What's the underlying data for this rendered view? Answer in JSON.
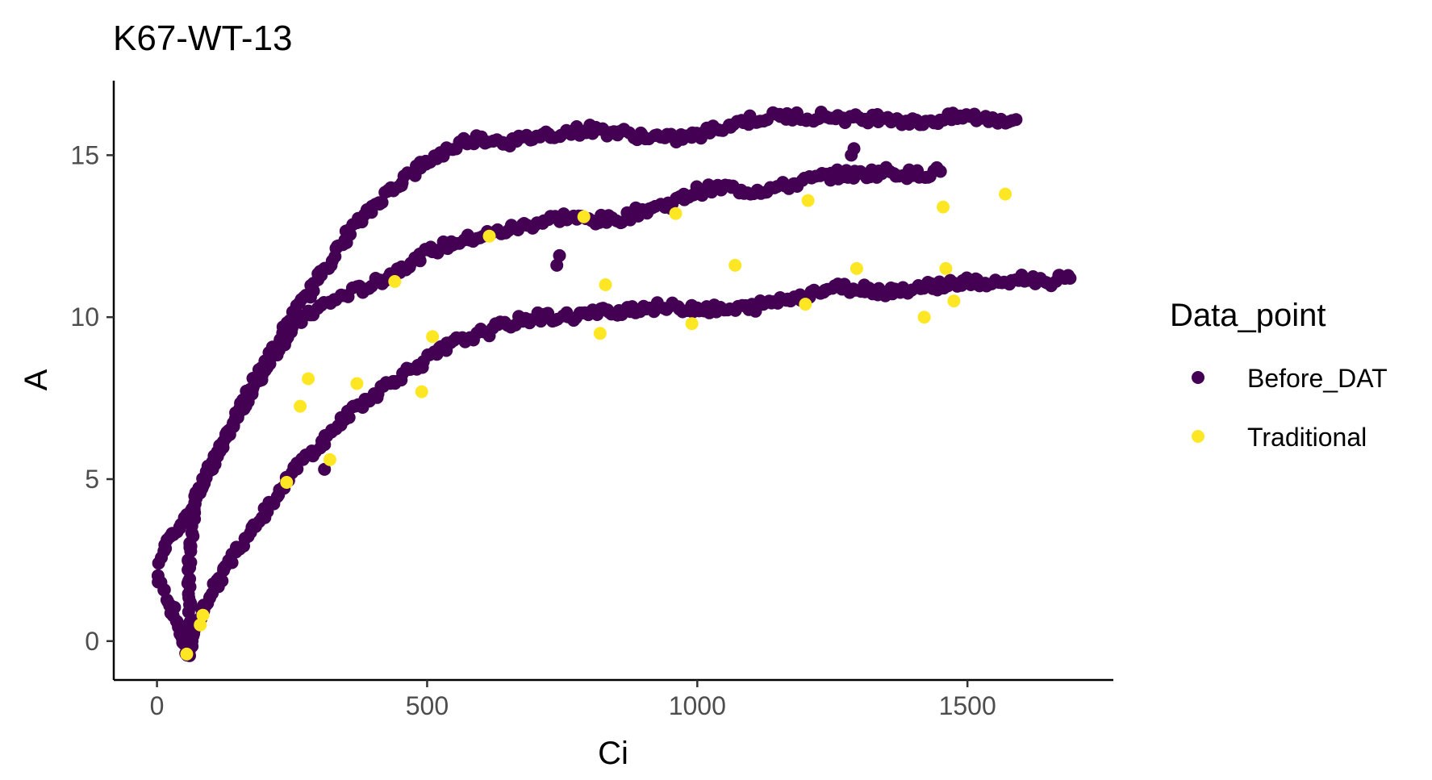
{
  "chart_data": {
    "type": "scatter",
    "title": "K67-WT-13",
    "xlabel": "Ci",
    "ylabel": "A",
    "xlim": [
      -80,
      1770
    ],
    "ylim": [
      -1.2,
      17.3
    ],
    "x_ticks": [
      0,
      500,
      1000,
      1500
    ],
    "y_ticks": [
      0,
      5,
      10,
      15
    ],
    "x_tick_labels": [
      "0",
      "500",
      "1000",
      "1500"
    ],
    "y_tick_labels": [
      "0",
      "5",
      "10",
      "15"
    ],
    "grid": false,
    "legend": {
      "title": "Data_point",
      "position": "right"
    },
    "series": [
      {
        "name": "Before_DAT",
        "color": "#440154",
        "curves": [
          {
            "points": [
              [
                2,
                2.0
              ],
              [
                15,
                1.5
              ],
              [
                30,
                0.9
              ],
              [
                45,
                0.2
              ],
              [
                55,
                -0.4
              ],
              [
                60,
                -0.3
              ],
              [
                60,
                2.5
              ],
              [
                70,
                4.3
              ],
              [
                90,
                5.0
              ],
              [
                120,
                6.0
              ],
              [
                150,
                7.0
              ],
              [
                180,
                7.8
              ],
              [
                210,
                8.7
              ],
              [
                230,
                9.2
              ],
              [
                260,
                9.8
              ],
              [
                300,
                10.3
              ],
              [
                350,
                10.7
              ],
              [
                400,
                11.0
              ],
              [
                450,
                11.5
              ],
              [
                500,
                12.0
              ],
              [
                550,
                12.3
              ],
              [
                600,
                12.5
              ],
              [
                650,
                12.7
              ],
              [
                700,
                12.9
              ],
              [
                750,
                13.1
              ],
              [
                800,
                13.0
              ],
              [
                850,
                13.0
              ],
              [
                900,
                13.3
              ],
              [
                950,
                13.5
              ],
              [
                1000,
                13.9
              ],
              [
                1050,
                14.0
              ],
              [
                1100,
                13.9
              ],
              [
                1150,
                14.0
              ],
              [
                1200,
                14.2
              ],
              [
                1250,
                14.4
              ],
              [
                1300,
                14.4
              ],
              [
                1350,
                14.5
              ],
              [
                1400,
                14.4
              ],
              [
                1450,
                14.5
              ]
            ]
          },
          {
            "points": [
              [
                5,
                2.5
              ],
              [
                20,
                3.0
              ],
              [
                40,
                3.5
              ],
              [
                60,
                4.0
              ],
              [
                80,
                4.7
              ],
              [
                100,
                5.4
              ],
              [
                120,
                6.1
              ],
              [
                150,
                7.0
              ],
              [
                180,
                8.0
              ],
              [
                200,
                8.6
              ],
              [
                230,
                9.4
              ],
              [
                250,
                10.0
              ],
              [
                270,
                10.5
              ],
              [
                300,
                11.2
              ],
              [
                330,
                12.0
              ],
              [
                360,
                12.7
              ],
              [
                400,
                13.4
              ],
              [
                430,
                13.9
              ],
              [
                460,
                14.3
              ],
              [
                500,
                14.8
              ],
              [
                540,
                15.2
              ],
              [
                580,
                15.5
              ],
              [
                620,
                15.5
              ],
              [
                660,
                15.4
              ],
              [
                700,
                15.6
              ],
              [
                750,
                15.7
              ],
              [
                800,
                15.8
              ],
              [
                850,
                15.7
              ],
              [
                900,
                15.6
              ],
              [
                950,
                15.5
              ],
              [
                1000,
                15.6
              ],
              [
                1050,
                15.9
              ],
              [
                1100,
                16.1
              ],
              [
                1150,
                16.2
              ],
              [
                1200,
                16.2
              ],
              [
                1250,
                16.2
              ],
              [
                1300,
                16.1
              ],
              [
                1350,
                16.2
              ],
              [
                1400,
                16.0
              ],
              [
                1450,
                16.1
              ],
              [
                1500,
                16.2
              ],
              [
                1550,
                16.1
              ],
              [
                1590,
                16.1
              ]
            ]
          },
          {
            "points": [
              [
                60,
                -0.4
              ],
              [
                70,
                0.5
              ],
              [
                90,
                1.2
              ],
              [
                120,
                2.0
              ],
              [
                150,
                2.9
              ],
              [
                180,
                3.6
              ],
              [
                210,
                4.2
              ],
              [
                240,
                5.0
              ],
              [
                270,
                5.6
              ],
              [
                300,
                6.0
              ],
              [
                330,
                6.6
              ],
              [
                360,
                7.1
              ],
              [
                400,
                7.6
              ],
              [
                450,
                8.2
              ],
              [
                500,
                8.7
              ],
              [
                550,
                9.2
              ],
              [
                600,
                9.5
              ],
              [
                650,
                9.8
              ],
              [
                700,
                10.0
              ],
              [
                750,
                10.0
              ],
              [
                800,
                10.1
              ],
              [
                850,
                10.2
              ],
              [
                900,
                10.3
              ],
              [
                950,
                10.3
              ],
              [
                1000,
                10.3
              ],
              [
                1050,
                10.2
              ],
              [
                1100,
                10.3
              ],
              [
                1150,
                10.5
              ],
              [
                1200,
                10.7
              ],
              [
                1250,
                10.9
              ],
              [
                1300,
                10.9
              ],
              [
                1350,
                10.8
              ],
              [
                1400,
                10.9
              ],
              [
                1450,
                11.0
              ],
              [
                1500,
                11.1
              ],
              [
                1550,
                11.0
              ],
              [
                1600,
                11.2
              ],
              [
                1650,
                11.1
              ],
              [
                1690,
                11.2
              ]
            ]
          },
          {
            "points": [
              [
                310,
                5.3
              ],
              [
                740,
                11.6
              ],
              [
                745,
                11.9
              ],
              [
                1285,
                15.0
              ],
              [
                1290,
                15.2
              ]
            ]
          }
        ]
      },
      {
        "name": "Traditional",
        "color": "#fde725",
        "points": [
          [
            55,
            -0.4
          ],
          [
            80,
            0.5
          ],
          [
            85,
            0.8
          ],
          [
            240,
            4.9
          ],
          [
            265,
            7.25
          ],
          [
            280,
            8.1
          ],
          [
            320,
            5.6
          ],
          [
            370,
            7.95
          ],
          [
            440,
            11.1
          ],
          [
            490,
            7.7
          ],
          [
            510,
            9.4
          ],
          [
            615,
            12.5
          ],
          [
            790,
            13.1
          ],
          [
            820,
            9.5
          ],
          [
            830,
            11.0
          ],
          [
            960,
            13.2
          ],
          [
            990,
            9.8
          ],
          [
            1070,
            11.6
          ],
          [
            1200,
            10.4
          ],
          [
            1205,
            13.6
          ],
          [
            1295,
            11.5
          ],
          [
            1420,
            10.0
          ],
          [
            1455,
            13.4
          ],
          [
            1460,
            11.5
          ],
          [
            1475,
            10.5
          ],
          [
            1570,
            13.8
          ]
        ]
      }
    ]
  }
}
